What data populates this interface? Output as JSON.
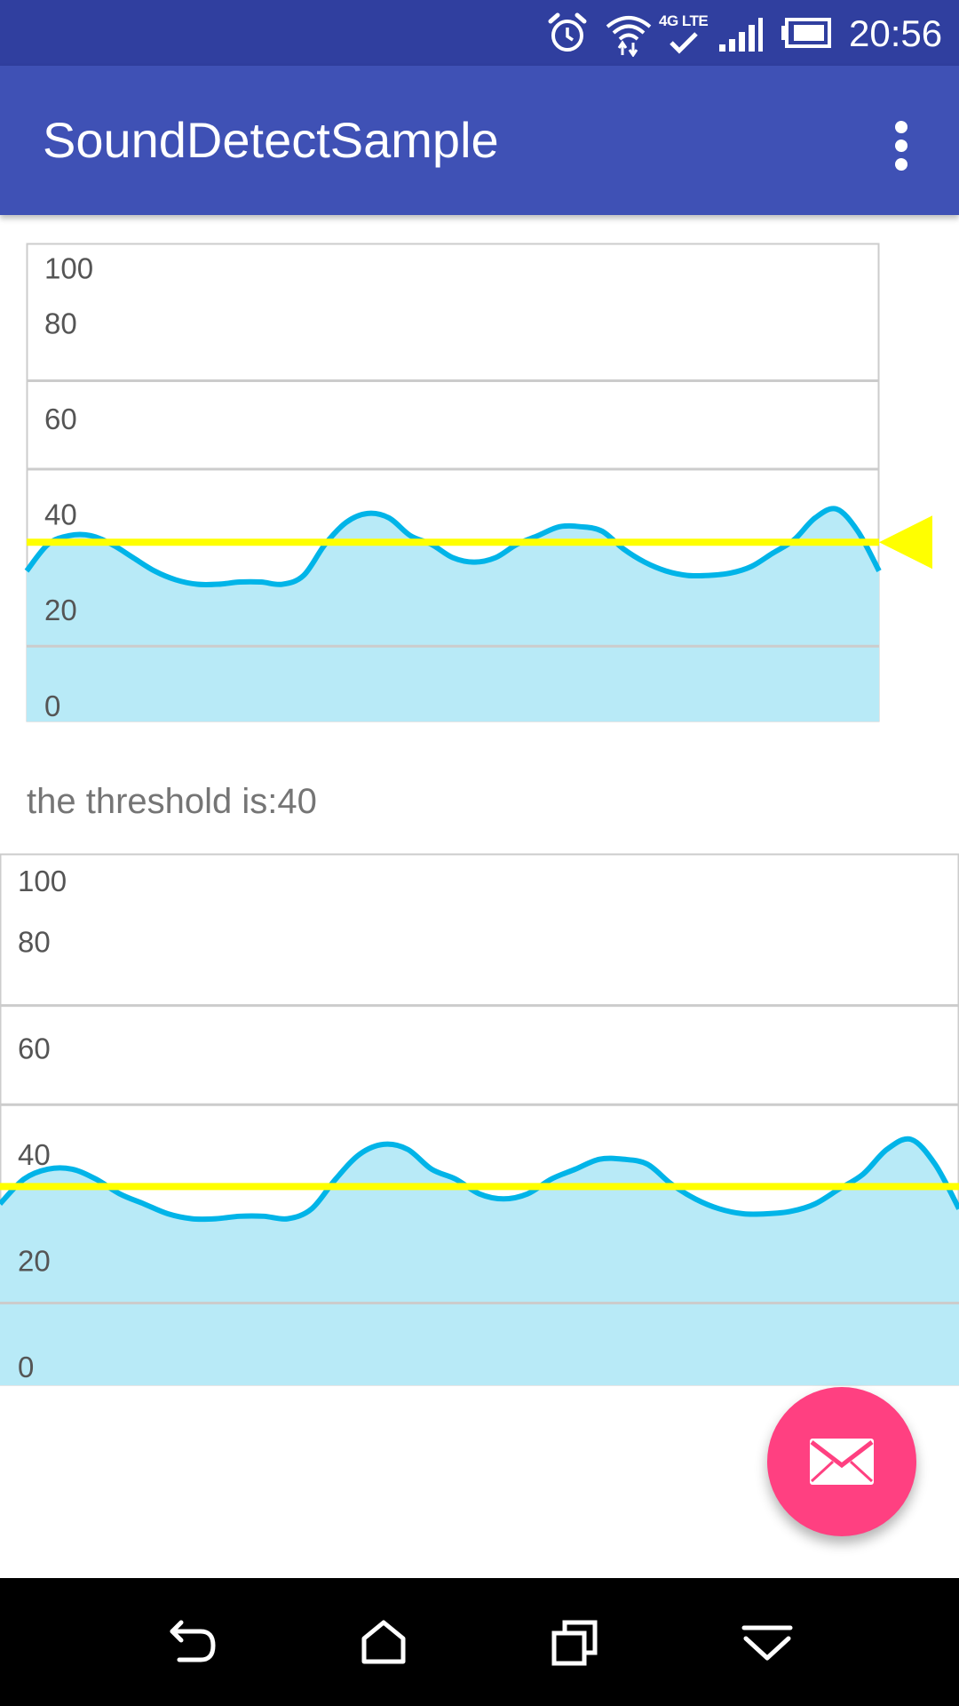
{
  "status_bar": {
    "time": "20:56",
    "network_label": "4G LTE",
    "icons": [
      "alarm-icon",
      "wifi-icon",
      "lte-icon",
      "signal-icon",
      "battery-icon"
    ]
  },
  "app_bar": {
    "title": "SoundDetectSample",
    "menu_icon": "more-vert-icon",
    "color": "#3f51b5"
  },
  "threshold_text": "the threshold is:40",
  "charts": [
    {
      "name": "top-chart",
      "ticks": [
        "100",
        "80",
        "60",
        "40",
        "20",
        "0"
      ],
      "threshold": 40,
      "threshold_marker": true
    },
    {
      "name": "bottom-chart",
      "ticks": [
        "100",
        "80",
        "60",
        "40",
        "20",
        "0"
      ],
      "threshold": 40,
      "threshold_marker": false
    }
  ],
  "chart_data": [
    {
      "type": "area",
      "title": "",
      "ylim": [
        0,
        100
      ],
      "yticks": [
        100,
        80,
        60,
        40,
        20,
        0
      ],
      "grid": true,
      "series": [
        {
          "values": [
            30,
            36,
            38,
            38,
            36,
            33,
            30,
            28,
            27,
            27,
            27.5,
            27.5,
            27,
            29,
            36,
            41,
            43,
            42,
            38,
            36,
            33,
            32,
            33,
            36,
            38,
            40,
            40,
            39,
            35,
            32,
            30,
            29,
            29,
            29.5,
            31,
            34,
            37,
            42,
            44,
            39,
            30
          ]
        }
      ],
      "threshold_line": 40,
      "colors": {
        "line": "#00b4e8",
        "fill": "#b8eaf7",
        "threshold": "#ffff00"
      }
    },
    {
      "type": "area",
      "title": "",
      "ylim": [
        0,
        100
      ],
      "yticks": [
        100,
        80,
        60,
        40,
        20,
        0
      ],
      "grid": true,
      "series": [
        {
          "values": [
            33,
            38,
            40,
            40,
            38,
            35,
            33,
            31,
            30,
            30,
            30.5,
            30.5,
            30,
            32,
            38,
            43,
            45,
            44,
            40,
            38,
            35,
            34,
            35,
            38,
            40,
            42,
            42,
            41,
            37,
            34,
            32,
            31,
            31,
            31.5,
            33,
            36,
            39,
            44,
            46,
            41,
            32
          ]
        }
      ],
      "threshold_line": 40,
      "colors": {
        "line": "#00b4e8",
        "fill": "#b8eaf7",
        "threshold": "#ffff00"
      }
    }
  ],
  "nav_bar": {
    "buttons": [
      "back-icon",
      "home-icon",
      "recents-icon",
      "dropdown-icon"
    ]
  },
  "fab": {
    "icon": "mail-icon",
    "color": "#ff4081"
  }
}
